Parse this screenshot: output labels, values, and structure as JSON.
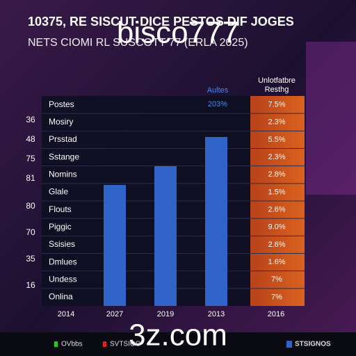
{
  "chart_data": {
    "type": "bar",
    "title": "10375, RE SISCUT DICE PESTOS DIF JOGES",
    "subtitle": "NETS CIOMI RL SUSCOTT 77 (ERLA 2025)",
    "categories": [
      "2027",
      "2019",
      "2013"
    ],
    "values": [
      58,
      67,
      81
    ],
    "ylim": [
      0,
      100
    ],
    "color": "#2f63c8"
  },
  "table": {
    "left_numbers": [
      "36",
      "48",
      "75",
      "81",
      "80",
      "70",
      "35",
      "16"
    ],
    "row_labels": [
      "Postes",
      "Mosiry",
      "Prsstad",
      "Sstange",
      "Nomins",
      "Glale",
      "Flouts",
      "Piggic",
      "Ssisies",
      "Dmlues",
      "Undess",
      "Onlina"
    ],
    "blue_header": [
      "Aultes",
      "203%"
    ],
    "orange_header": [
      "Unlotfatbre",
      "Resthg"
    ],
    "orange_values": [
      "7.5%",
      "2.3%",
      "5.5%",
      "2.3%",
      "2.8%",
      "1.5%",
      "2.6%",
      "9.0%",
      "2.6%",
      "1.6%",
      "7%",
      "7%"
    ],
    "first_column_label": "2014",
    "last_column_label": "2016"
  },
  "watermarks": [
    "bisco777",
    "3z.com"
  ],
  "footer": [
    "OVbbs",
    "SVTSIOG",
    "STSIGNOS"
  ]
}
